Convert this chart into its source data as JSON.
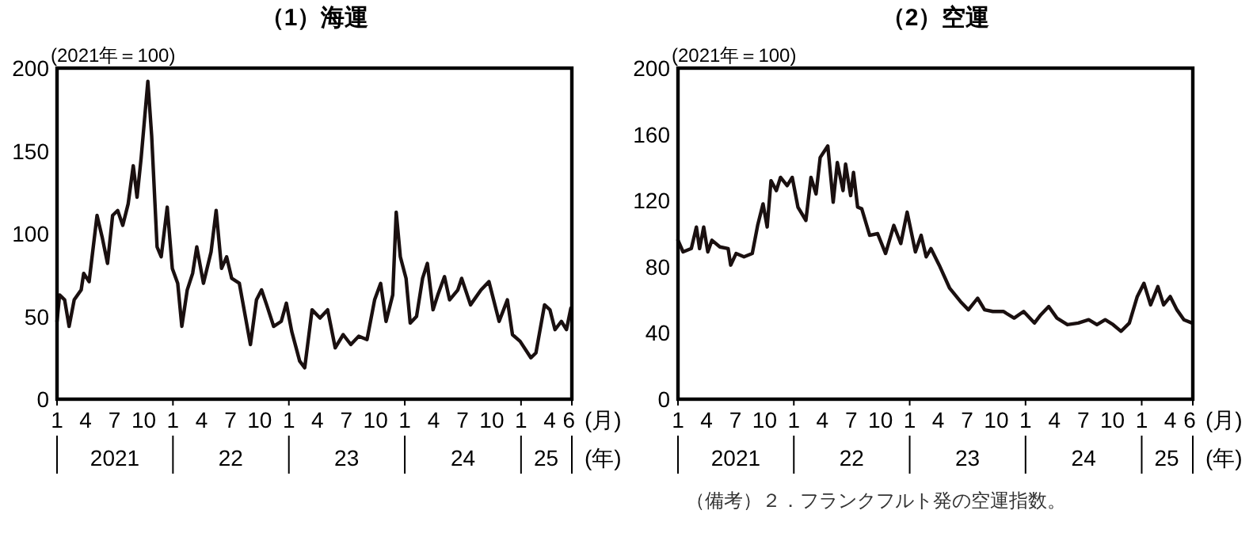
{
  "chart_data": [
    {
      "type": "line",
      "title": "（1）海運",
      "ylabel": "(2021年＝100)",
      "xlabel": "(月)",
      "x2label": "(年)",
      "x2lim": [
        "2021-01-01",
        "2025-06-10"
      ],
      "x2ticks": [
        {
          "value": "2021-01-01",
          "label": null
        },
        {
          "value": "2021-07-02",
          "label": "2021"
        },
        {
          "value": "2022-01-01",
          "label": null
        },
        {
          "value": "2022-07-02",
          "label": "22"
        },
        {
          "value": "2023-01-01",
          "label": null
        },
        {
          "value": "2023-07-02",
          "label": "23"
        },
        {
          "value": "2024-01-01",
          "label": null
        },
        {
          "value": "2024-07-02",
          "label": "24"
        },
        {
          "value": "2025-01-01",
          "label": null
        },
        {
          "value": "2025-03-21",
          "label": "25"
        },
        {
          "value": "2025-06-10",
          "label": null
        }
      ],
      "xlim": [
        "2021-01-01",
        "2025-06-10"
      ],
      "ylim": [
        0,
        200
      ],
      "yticks": [
        0,
        50,
        100,
        150,
        200
      ],
      "xticks": [
        {
          "value": "2021-01",
          "label": "1"
        },
        {
          "value": "2021-04",
          "label": "4"
        },
        {
          "value": "2021-07",
          "label": "7"
        },
        {
          "value": "2021-10",
          "label": "10"
        },
        {
          "value": "2022-01",
          "label": "1"
        },
        {
          "value": "2022-04",
          "label": "4"
        },
        {
          "value": "2022-07",
          "label": "7"
        },
        {
          "value": "2022-10",
          "label": "10"
        },
        {
          "value": "2023-01",
          "label": "1"
        },
        {
          "value": "2023-04",
          "label": "4"
        },
        {
          "value": "2023-07",
          "label": "7"
        },
        {
          "value": "2023-10",
          "label": "10"
        },
        {
          "value": "2024-01",
          "label": "1"
        },
        {
          "value": "2024-04",
          "label": "4"
        },
        {
          "value": "2024-07",
          "label": "7"
        },
        {
          "value": "2024-10",
          "label": "10"
        },
        {
          "value": "2025-01",
          "label": "1"
        },
        {
          "value": "2025-04",
          "label": "4"
        },
        {
          "value": "2025-06",
          "label": "6"
        }
      ],
      "grid": false,
      "marker": "none",
      "line_style": "solid",
      "series": [
        {
          "color": "#1a1010",
          "x": [
            "2021-01-01",
            "2021-01-09",
            "2021-01-25",
            "2021-02-08",
            "2021-02-24",
            "2021-03-18",
            "2021-03-26",
            "2021-04-12",
            "2021-05-07",
            "2021-05-23",
            "2021-06-09",
            "2021-06-25",
            "2021-07-11",
            "2021-07-27",
            "2021-08-13",
            "2021-08-29",
            "2021-09-10",
            "2021-09-23",
            "2021-10-14",
            "2021-10-26",
            "2021-11-12",
            "2021-11-25",
            "2021-12-14",
            "2021-12-30",
            "2022-01-16",
            "2022-01-29",
            "2022-02-15",
            "2022-03-04",
            "2022-03-17",
            "2022-04-07",
            "2022-05-01",
            "2022-05-17",
            "2022-06-03",
            "2022-06-19",
            "2022-07-05",
            "2022-07-29",
            "2022-09-02",
            "2022-09-21",
            "2022-10-07",
            "2022-10-23",
            "2022-11-14",
            "2022-12-08",
            "2022-12-24",
            "2023-01-10",
            "2023-02-04",
            "2023-02-20",
            "2023-03-15",
            "2023-04-09",
            "2023-05-03",
            "2023-05-27",
            "2023-06-21",
            "2023-07-15",
            "2023-08-09",
            "2023-09-04",
            "2023-09-28",
            "2023-10-17",
            "2023-11-03",
            "2023-11-24",
            "2023-12-05",
            "2023-12-18",
            "2024-01-05",
            "2024-01-18",
            "2024-02-07",
            "2024-02-26",
            "2024-03-12",
            "2024-03-30",
            "2024-04-14",
            "2024-05-05",
            "2024-05-21",
            "2024-06-16",
            "2024-06-28",
            "2024-07-26",
            "2024-08-28",
            "2024-09-22",
            "2024-10-24",
            "2024-11-19",
            "2024-12-05",
            "2024-12-29",
            "2025-02-01",
            "2025-02-17",
            "2025-03-16",
            "2025-04-02",
            "2025-04-18",
            "2025-05-08",
            "2025-05-24",
            "2025-06-07"
          ],
          "values": [
            47,
            63,
            60,
            44,
            60,
            66,
            76,
            71,
            111,
            98,
            82,
            111,
            114,
            105,
            118,
            141,
            122,
            146,
            192,
            159,
            92,
            86,
            116,
            79,
            70,
            44,
            66,
            76,
            92,
            70,
            89,
            114,
            79,
            86,
            73,
            70,
            33,
            60,
            66,
            57,
            44,
            47,
            58,
            41,
            23,
            19,
            54,
            49,
            54,
            31,
            39,
            33,
            38,
            36,
            60,
            70,
            47,
            63,
            113,
            86,
            73,
            46,
            50,
            73,
            82,
            54,
            63,
            74,
            60,
            66,
            73,
            57,
            66,
            71,
            47,
            60,
            39,
            35,
            25,
            28,
            57,
            54,
            42,
            47,
            42,
            55
          ]
        }
      ]
    },
    {
      "type": "line",
      "title": "（2）空運",
      "ylabel": "(2021年＝100)",
      "xlabel": "(月)",
      "annotations": [
        "（備考）２．フランクフルト発の空運指数。"
      ],
      "x2label": "(年)",
      "x2lim": [
        "2021-01-01",
        "2025-06-11"
      ],
      "x2ticks": [
        {
          "value": "2021-01-01",
          "label": null
        },
        {
          "value": "2021-07-02",
          "label": "2021"
        },
        {
          "value": "2022-01-01",
          "label": null
        },
        {
          "value": "2022-07-02",
          "label": "22"
        },
        {
          "value": "2023-01-01",
          "label": null
        },
        {
          "value": "2023-07-02",
          "label": "23"
        },
        {
          "value": "2024-01-01",
          "label": null
        },
        {
          "value": "2024-07-02",
          "label": "24"
        },
        {
          "value": "2025-01-01",
          "label": null
        },
        {
          "value": "2025-03-21",
          "label": "25"
        },
        {
          "value": "2025-06-11",
          "label": null
        }
      ],
      "xlim": [
        "2021-01-01",
        "2025-06-11"
      ],
      "ylim": [
        0,
        200
      ],
      "yticks": [
        0,
        40,
        80,
        120,
        160,
        200
      ],
      "xticks": [
        {
          "value": "2021-01",
          "label": "1"
        },
        {
          "value": "2021-04",
          "label": "4"
        },
        {
          "value": "2021-07",
          "label": "7"
        },
        {
          "value": "2021-10",
          "label": "10"
        },
        {
          "value": "2022-01",
          "label": "1"
        },
        {
          "value": "2022-04",
          "label": "4"
        },
        {
          "value": "2022-07",
          "label": "7"
        },
        {
          "value": "2022-10",
          "label": "10"
        },
        {
          "value": "2023-01",
          "label": "1"
        },
        {
          "value": "2023-04",
          "label": "4"
        },
        {
          "value": "2023-07",
          "label": "7"
        },
        {
          "value": "2023-10",
          "label": "10"
        },
        {
          "value": "2024-01",
          "label": "1"
        },
        {
          "value": "2024-04",
          "label": "4"
        },
        {
          "value": "2024-07",
          "label": "7"
        },
        {
          "value": "2024-10",
          "label": "10"
        },
        {
          "value": "2025-01",
          "label": "1"
        },
        {
          "value": "2025-04",
          "label": "4"
        },
        {
          "value": "2025-06",
          "label": "6"
        }
      ],
      "grid": false,
      "marker": "none",
      "line_style": "solid",
      "series": [
        {
          "color": "#1a1010",
          "x": [
            "2021-01-01",
            "2021-01-17",
            "2021-02-12",
            "2021-02-28",
            "2021-03-10",
            "2021-03-23",
            "2021-04-05",
            "2021-04-18",
            "2021-05-13",
            "2021-06-08",
            "2021-06-16",
            "2021-07-03",
            "2021-07-28",
            "2021-08-23",
            "2021-09-09",
            "2021-09-26",
            "2021-10-09",
            "2021-10-21",
            "2021-11-07",
            "2021-11-20",
            "2021-12-11",
            "2021-12-27",
            "2022-01-14",
            "2022-02-08",
            "2022-02-24",
            "2022-03-12",
            "2022-03-25",
            "2022-04-18",
            "2022-05-05",
            "2022-05-18",
            "2022-06-05",
            "2022-06-13",
            "2022-06-29",
            "2022-07-08",
            "2022-07-21",
            "2022-08-03",
            "2022-08-28",
            "2022-09-22",
            "2022-10-17",
            "2022-11-12",
            "2022-12-04",
            "2022-12-24",
            "2023-01-19",
            "2023-02-06",
            "2023-02-22",
            "2023-03-09",
            "2023-04-04",
            "2023-05-07",
            "2023-06-10",
            "2023-07-05",
            "2023-08-03",
            "2023-08-25",
            "2023-09-20",
            "2023-10-23",
            "2023-11-26",
            "2023-12-26",
            "2024-01-29",
            "2024-02-18",
            "2024-03-14",
            "2024-04-09",
            "2024-05-12",
            "2024-06-15",
            "2024-07-18",
            "2024-08-13",
            "2024-09-08",
            "2024-10-03",
            "2024-10-28",
            "2024-11-23",
            "2024-12-18",
            "2025-01-08",
            "2025-01-29",
            "2025-02-21",
            "2025-03-11",
            "2025-04-01",
            "2025-04-22",
            "2025-05-14",
            "2025-06-09"
          ],
          "values": [
            96,
            89,
            91,
            104,
            91,
            104,
            89,
            96,
            92,
            91,
            81,
            88,
            86,
            88,
            105,
            118,
            104,
            132,
            126,
            134,
            129,
            134,
            116,
            108,
            134,
            124,
            146,
            153,
            119,
            143,
            126,
            142,
            123,
            137,
            116,
            115,
            99,
            100,
            88,
            105,
            94,
            113,
            89,
            99,
            86,
            91,
            81,
            67,
            59,
            54,
            61,
            54,
            53,
            53,
            49,
            53,
            46,
            51,
            56,
            49,
            45,
            46,
            48,
            45,
            48,
            45,
            41,
            46,
            62,
            70,
            57,
            68,
            57,
            62,
            54,
            48,
            46
          ]
        }
      ]
    }
  ]
}
